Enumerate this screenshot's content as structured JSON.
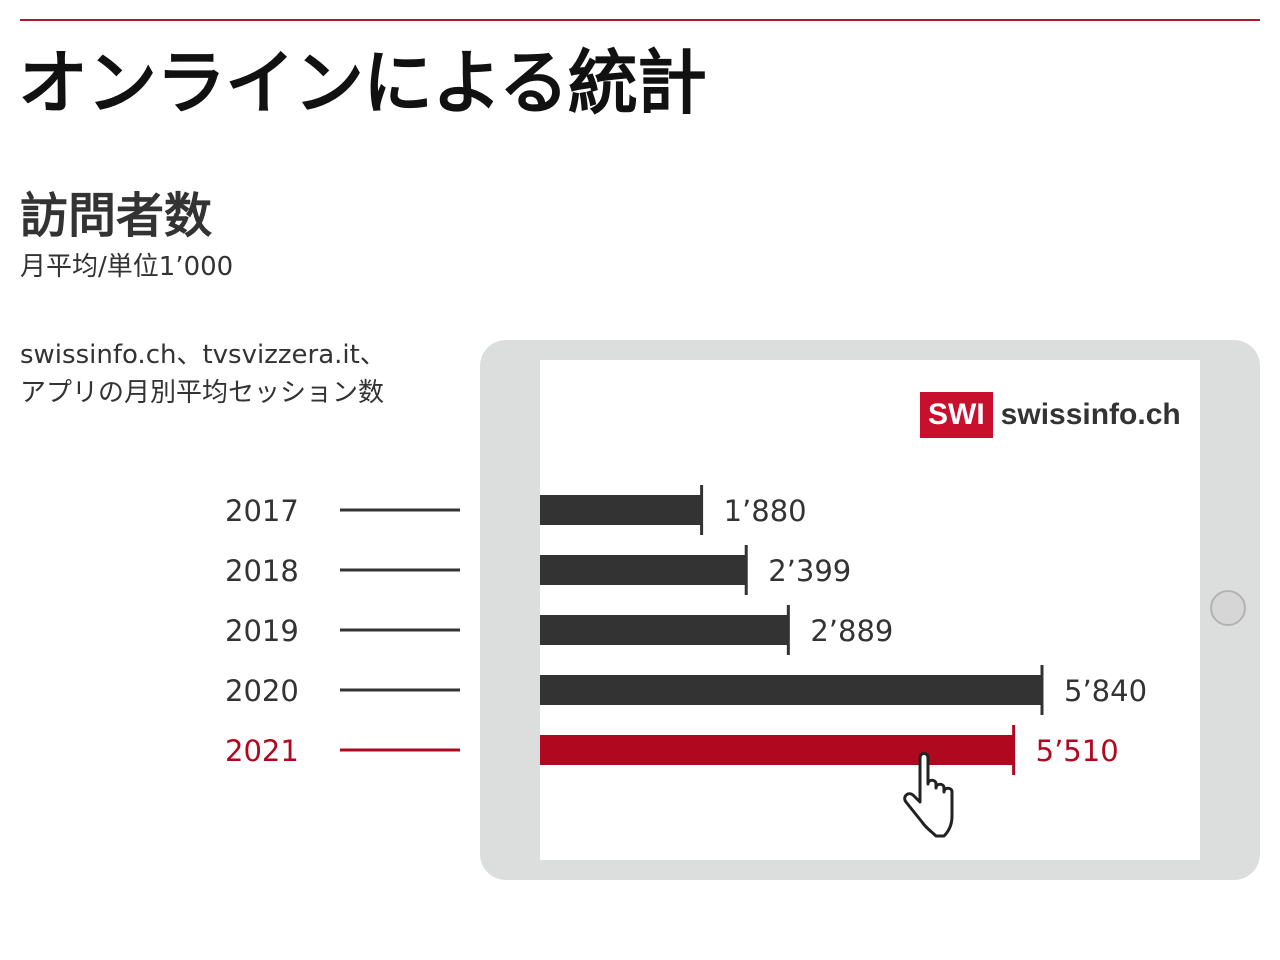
{
  "header": {
    "title": "オンラインによる統計"
  },
  "section": {
    "title": "訪問者数",
    "unit": "月平均/単位1’000"
  },
  "description": {
    "line1": "swissinfo.ch、tvsvizzera.it、",
    "line2": "アプリの月別平均セッション数"
  },
  "logo": {
    "badge": "SWI",
    "text": "swissinfo.ch"
  },
  "colors": {
    "default_bar": "#333333",
    "highlight": "#b0091f",
    "leader_line": "#333333",
    "rule": "#a61c2c"
  },
  "icons": {
    "pointer": "hand-pointer-icon"
  },
  "chart_data": {
    "type": "bar",
    "orientation": "horizontal",
    "categories": [
      "2017",
      "2018",
      "2019",
      "2020",
      "2021"
    ],
    "values": [
      1880,
      2399,
      2889,
      5840,
      5510
    ],
    "value_labels": [
      "1’880",
      "2’399",
      "2’889",
      "5’840",
      "5’510"
    ],
    "highlight_index": 4,
    "xlim": [
      0,
      5840
    ],
    "grid": false,
    "legend": false
  }
}
